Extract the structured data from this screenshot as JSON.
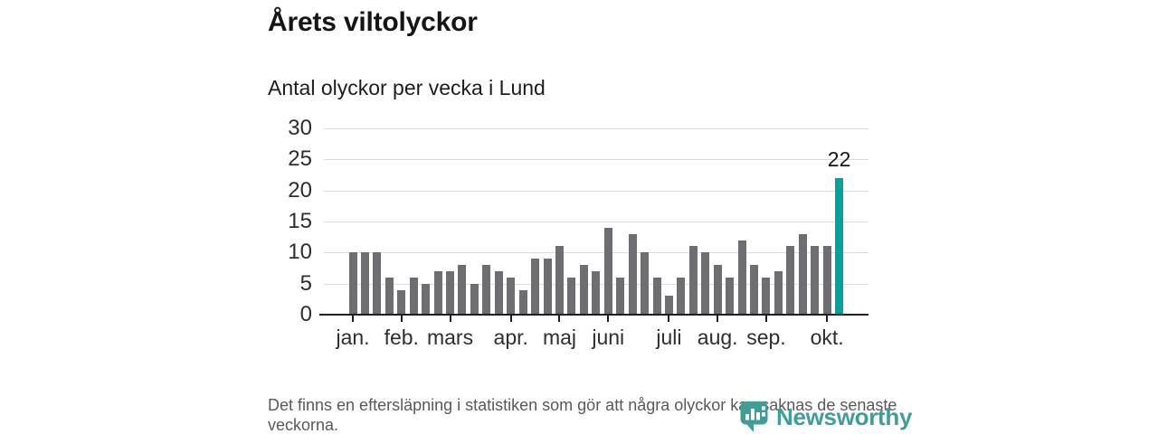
{
  "chart_data": {
    "type": "bar",
    "title": "Årets viltolyckor",
    "subtitle": "Antal olyckor per vecka i Lund",
    "xlabel": "",
    "ylabel": "",
    "categories_note": "weekly bars, weeks 1-41 of the year",
    "values": [
      10,
      10,
      10,
      6,
      4,
      6,
      5,
      7,
      7,
      8,
      5,
      8,
      7,
      6,
      4,
      9,
      9,
      11,
      6,
      8,
      7,
      14,
      6,
      13,
      10,
      6,
      3,
      6,
      11,
      10,
      8,
      6,
      12,
      8,
      6,
      7,
      11,
      13,
      11,
      11,
      22
    ],
    "highlight_index": 40,
    "highlight_value_label": "22",
    "bar_color": "#6d6d72",
    "highlight_color": "#00a49b",
    "ylim": [
      0,
      30
    ],
    "yticks": [
      0,
      5,
      10,
      15,
      20,
      25,
      30
    ],
    "x_tick_indices": [
      0,
      4,
      8,
      13,
      17,
      21,
      26,
      30,
      34,
      39
    ],
    "x_tick_labels": [
      "jan.",
      "feb.",
      "mars",
      "apr.",
      "maj",
      "juni",
      "juli",
      "aug.",
      "sep.",
      "okt."
    ],
    "grid": "horizontal gridlines on, legend off"
  },
  "footer": {
    "note": "Det finns en eftersläpning i statistiken som gör att några olyckor kan saknas de senaste veckorna."
  },
  "brand": {
    "name": "Newsworthy",
    "color": "#3f9e96",
    "icon": "newsworthy-pin-barchart-icon"
  }
}
